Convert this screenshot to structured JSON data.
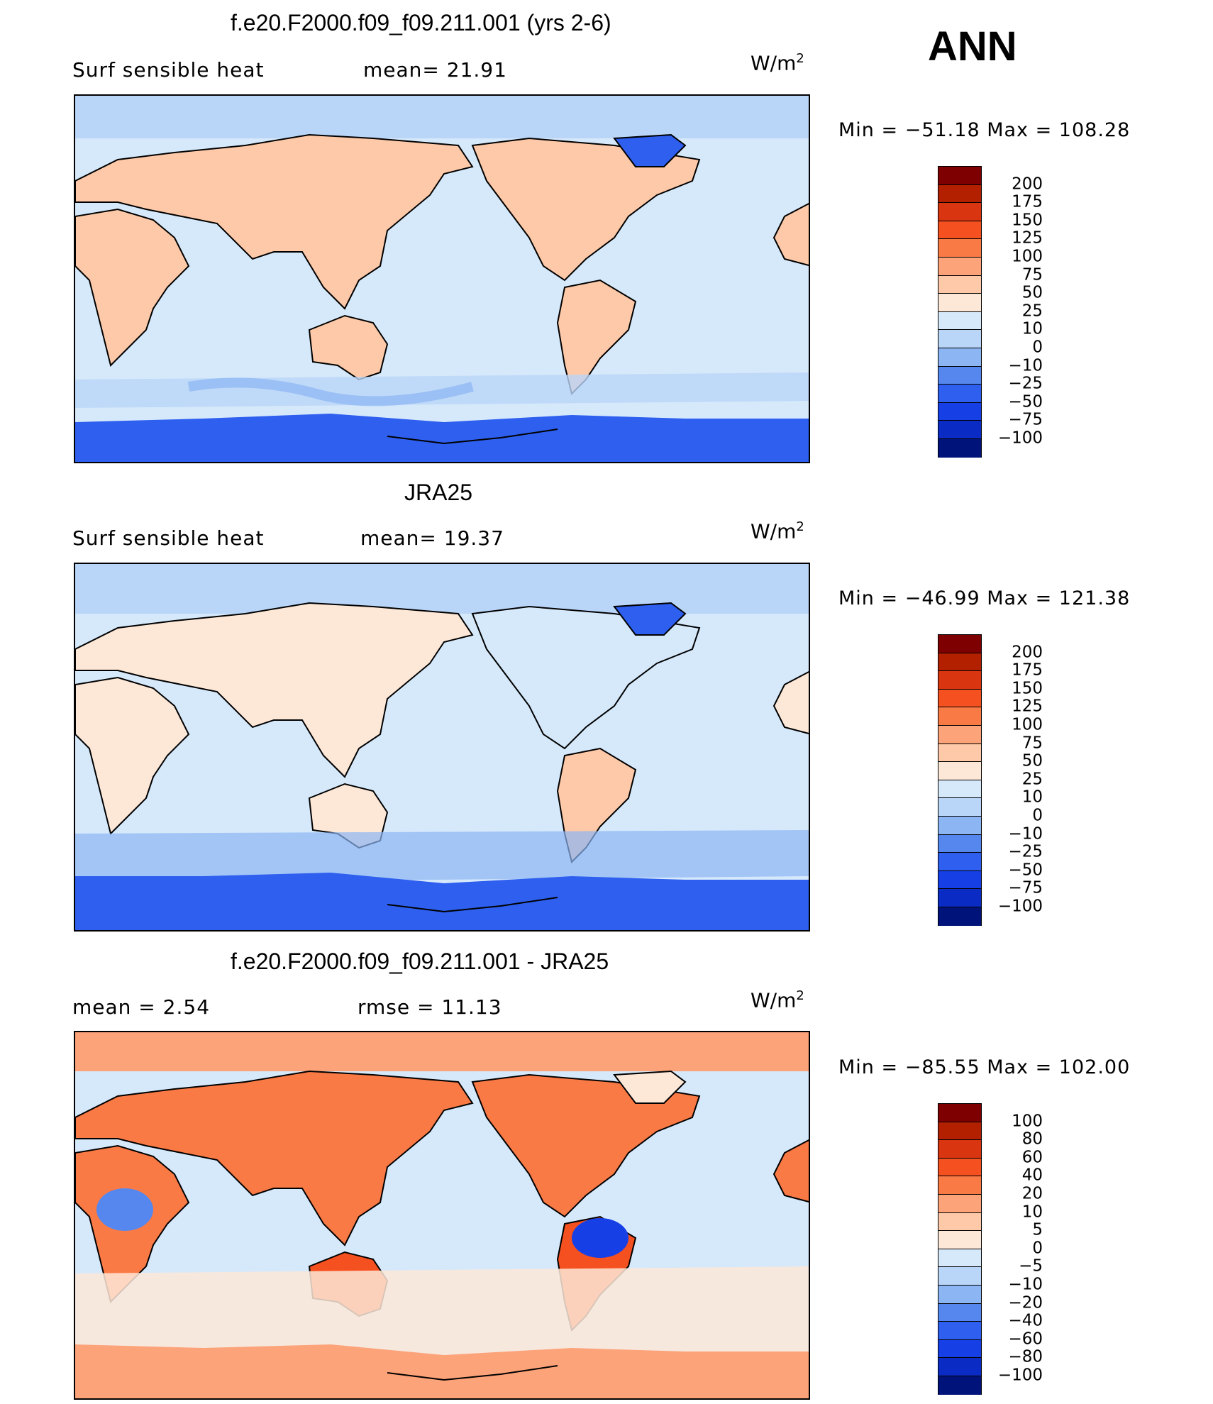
{
  "season": "ANN",
  "units": {
    "base": "W/m",
    "exp": "2"
  },
  "panels": [
    {
      "title": "f.e20.F2000.f09_f09.211.001 (yrs 2-6)",
      "left_label": "Surf  sensible  heat",
      "stat1": "mean=   21.91",
      "stat2": "",
      "minmax": "Min  =  −51.18  Max  =  108.28",
      "colorbar_labels": [
        "200",
        "175",
        "150",
        "125",
        "100",
        "75",
        "50",
        "25",
        "10",
        "0",
        "−10",
        "−25",
        "−50",
        "−75",
        "−100"
      ]
    },
    {
      "title": "JRA25",
      "left_label": "Surf  sensible  heat",
      "stat1": "mean=   19.37",
      "stat2": "",
      "minmax": "Min  =  −46.99  Max  =  121.38",
      "colorbar_labels": [
        "200",
        "175",
        "150",
        "125",
        "100",
        "75",
        "50",
        "25",
        "10",
        "0",
        "−10",
        "−25",
        "−50",
        "−75",
        "−100"
      ]
    },
    {
      "title": "f.e20.F2000.f09_f09.211.001 - JRA25",
      "left_label": "mean  =     2.54",
      "stat1": "rmse  =    11.13",
      "stat2": "",
      "minmax": "Min  =  −85.55  Max  =  102.00",
      "colorbar_labels": [
        "100",
        "80",
        "60",
        "40",
        "20",
        "10",
        "5",
        "0",
        "−5",
        "−10",
        "−20",
        "−40",
        "−60",
        "−80",
        "−100"
      ]
    }
  ],
  "colors": {
    "colorbar": [
      "#7f0000",
      "#b22000",
      "#d93510",
      "#f5501f",
      "#fa7a45",
      "#fca37a",
      "#fdc9a8",
      "#fde8d8",
      "#d6e9fb",
      "#b9d5f8",
      "#8cb5f3",
      "#5587ef",
      "#2e5fef",
      "#1640e6",
      "#0a2bc4",
      "#00137a"
    ],
    "ocean": "#d6e9fb",
    "land": "#fdc9a8",
    "antarctica": "#2e5fef",
    "arctic": "#b9d5f8",
    "diff_land": "#fa7a45",
    "diff_ocean": "#d6e9fb"
  }
}
